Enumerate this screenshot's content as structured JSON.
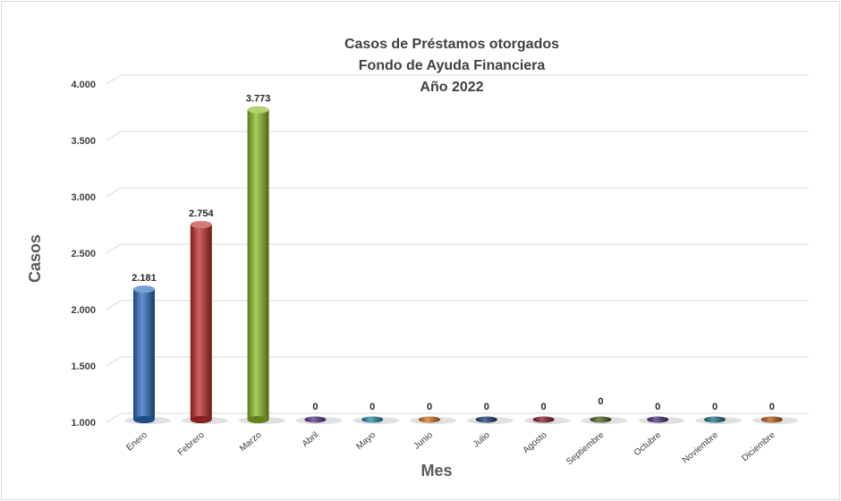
{
  "chart_data": {
    "type": "bar",
    "title_lines": [
      "Casos de Préstamos otorgados",
      "Fondo de Ayuda Financiera",
      "Año 2022"
    ],
    "xlabel": "Mes",
    "ylabel": "Casos",
    "ylim": [
      1000,
      4000
    ],
    "yticks": [
      1000,
      1500,
      2000,
      2500,
      3000,
      3500,
      4000
    ],
    "ytick_labels": [
      "1.000",
      "1.500",
      "2.000",
      "2.500",
      "3.000",
      "3.500",
      "4.000"
    ],
    "grid": true,
    "categories": [
      "Enero",
      "Febrero",
      "Marzo",
      "Abril",
      "Mayo",
      "Junio",
      "Julio",
      "Agosto",
      "Septiembre",
      "Octubre",
      "Noviembre",
      "Diciembre"
    ],
    "values": [
      2181,
      2754,
      3773,
      0,
      0,
      0,
      0,
      0,
      0,
      0,
      0,
      0
    ],
    "value_labels": [
      "2.181",
      "2.754",
      "3.773",
      "0",
      "0",
      "0",
      "0",
      "0",
      "0",
      "0",
      "0",
      "0"
    ],
    "colors": [
      "#2e6fc0",
      "#c0302c",
      "#8dbb2b",
      "#5a3a8a",
      "#2a8ca0",
      "#d07a20",
      "#1f3f78",
      "#8a2030",
      "#4f6a20",
      "#4a3278",
      "#237488",
      "#b85a18"
    ]
  }
}
